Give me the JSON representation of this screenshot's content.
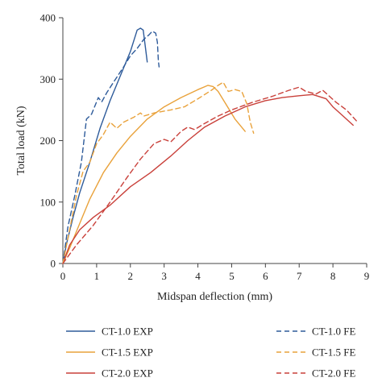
{
  "chart_data": {
    "type": "line",
    "xlabel": "Midspan deflection (mm)",
    "ylabel": "Total load (kN)",
    "xlim": [
      0,
      9
    ],
    "ylim": [
      0,
      400
    ],
    "xticks": [
      "0",
      "1",
      "2",
      "3",
      "4",
      "5",
      "6",
      "7",
      "8",
      "9"
    ],
    "yticks": [
      "0",
      "100",
      "200",
      "300",
      "400"
    ],
    "grid": false,
    "legend_position": "bottom",
    "series": [
      {
        "name": "CT-1.0 EXP",
        "color": "#2e5b9a",
        "style": "solid",
        "points": [
          [
            0,
            0
          ],
          [
            0.1,
            30
          ],
          [
            0.3,
            75
          ],
          [
            0.5,
            115
          ],
          [
            0.8,
            165
          ],
          [
            1.1,
            220
          ],
          [
            1.4,
            265
          ],
          [
            1.7,
            305
          ],
          [
            2.0,
            345
          ],
          [
            2.2,
            380
          ],
          [
            2.3,
            383
          ],
          [
            2.38,
            380
          ],
          [
            2.45,
            350
          ],
          [
            2.5,
            328
          ]
        ]
      },
      {
        "name": "CT-1.5 EXP",
        "color": "#e9a23b",
        "style": "solid",
        "points": [
          [
            0,
            0
          ],
          [
            0.2,
            25
          ],
          [
            0.5,
            65
          ],
          [
            0.8,
            105
          ],
          [
            1.2,
            148
          ],
          [
            1.6,
            180
          ],
          [
            2.0,
            207
          ],
          [
            2.5,
            235
          ],
          [
            3.0,
            255
          ],
          [
            3.5,
            270
          ],
          [
            4.0,
            283
          ],
          [
            4.3,
            290
          ],
          [
            4.45,
            288
          ],
          [
            4.6,
            280
          ],
          [
            4.8,
            262
          ],
          [
            5.1,
            235
          ],
          [
            5.4,
            215
          ]
        ]
      },
      {
        "name": "CT-2.0 EXP",
        "color": "#c9403a",
        "style": "solid",
        "points": [
          [
            0,
            0
          ],
          [
            0.2,
            30
          ],
          [
            0.5,
            55
          ],
          [
            0.9,
            75
          ],
          [
            1.4,
            95
          ],
          [
            2.0,
            125
          ],
          [
            2.6,
            148
          ],
          [
            3.2,
            175
          ],
          [
            3.7,
            200
          ],
          [
            4.2,
            222
          ],
          [
            4.8,
            240
          ],
          [
            5.4,
            255
          ],
          [
            6.0,
            265
          ],
          [
            6.5,
            270
          ],
          [
            7.0,
            273
          ],
          [
            7.4,
            275
          ],
          [
            7.8,
            268
          ],
          [
            8.0,
            255
          ],
          [
            8.3,
            240
          ],
          [
            8.6,
            225
          ]
        ]
      },
      {
        "name": "CT-1.0 FE",
        "color": "#2e5b9a",
        "style": "dashed",
        "points": [
          [
            0,
            0
          ],
          [
            0.15,
            60
          ],
          [
            0.35,
            110
          ],
          [
            0.55,
            165
          ],
          [
            0.7,
            235
          ],
          [
            0.85,
            243
          ],
          [
            1.05,
            270
          ],
          [
            1.15,
            263
          ],
          [
            1.3,
            278
          ],
          [
            1.5,
            295
          ],
          [
            1.8,
            320
          ],
          [
            2.0,
            338
          ],
          [
            2.2,
            350
          ],
          [
            2.4,
            365
          ],
          [
            2.55,
            372
          ],
          [
            2.65,
            378
          ],
          [
            2.75,
            375
          ],
          [
            2.8,
            360
          ],
          [
            2.83,
            330
          ],
          [
            2.85,
            320
          ]
        ]
      },
      {
        "name": "CT-1.5 FE",
        "color": "#e9a23b",
        "style": "dashed",
        "points": [
          [
            0,
            0
          ],
          [
            0.2,
            55
          ],
          [
            0.4,
            110
          ],
          [
            0.6,
            150
          ],
          [
            0.8,
            165
          ],
          [
            1.0,
            195
          ],
          [
            1.2,
            210
          ],
          [
            1.4,
            230
          ],
          [
            1.6,
            220
          ],
          [
            1.8,
            230
          ],
          [
            2.1,
            238
          ],
          [
            2.3,
            245
          ],
          [
            2.4,
            240
          ],
          [
            2.7,
            245
          ],
          [
            3.2,
            250
          ],
          [
            3.6,
            255
          ],
          [
            4.0,
            268
          ],
          [
            4.4,
            282
          ],
          [
            4.6,
            290
          ],
          [
            4.75,
            295
          ],
          [
            4.9,
            280
          ],
          [
            5.1,
            283
          ],
          [
            5.3,
            280
          ],
          [
            5.45,
            260
          ],
          [
            5.55,
            230
          ],
          [
            5.65,
            212
          ]
        ]
      },
      {
        "name": "CT-2.0 FE",
        "color": "#c9403a",
        "style": "dashed",
        "points": [
          [
            0,
            0
          ],
          [
            0.4,
            30
          ],
          [
            0.9,
            62
          ],
          [
            1.4,
            100
          ],
          [
            1.9,
            140
          ],
          [
            2.3,
            170
          ],
          [
            2.7,
            195
          ],
          [
            3.0,
            202
          ],
          [
            3.2,
            198
          ],
          [
            3.5,
            215
          ],
          [
            3.7,
            222
          ],
          [
            3.9,
            218
          ],
          [
            4.2,
            228
          ],
          [
            4.6,
            240
          ],
          [
            5.0,
            250
          ],
          [
            5.6,
            262
          ],
          [
            6.2,
            272
          ],
          [
            6.7,
            282
          ],
          [
            7.0,
            287
          ],
          [
            7.2,
            280
          ],
          [
            7.5,
            276
          ],
          [
            7.7,
            282
          ],
          [
            7.9,
            272
          ],
          [
            8.1,
            262
          ],
          [
            8.4,
            250
          ],
          [
            8.7,
            232
          ]
        ]
      }
    ]
  }
}
